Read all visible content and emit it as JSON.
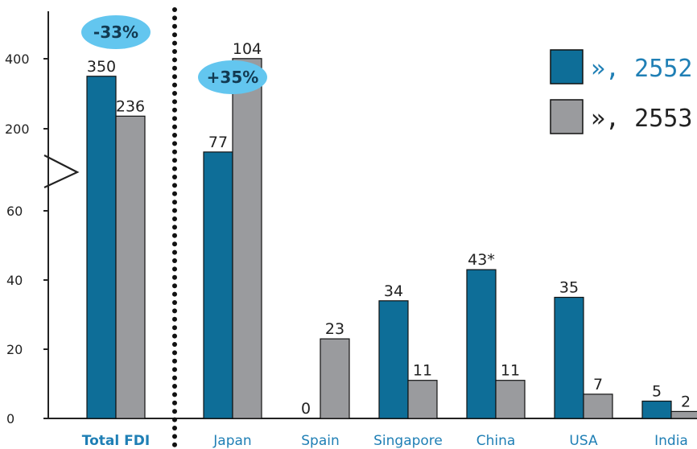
{
  "colors": {
    "series_2552": "#0e6e98",
    "series_2553": "#9a9b9e",
    "axis": "#222222",
    "category": "#1f7fb5",
    "badge": "#63c6ef",
    "legend_2552": "#1f7fb5",
    "legend_2553": "#222222"
  },
  "chart_data": {
    "type": "bar",
    "categories": [
      "Total FDI",
      "Japan",
      "Spain",
      "Singapore",
      "China",
      "USA",
      "India"
    ],
    "series": [
      {
        "name": "», 2552",
        "values": [
          350,
          77,
          0,
          34,
          43,
          35,
          5
        ],
        "labels": [
          "350",
          "77",
          "0",
          "34",
          "43*",
          "35",
          "5"
        ]
      },
      {
        "name": "», 2553",
        "values": [
          236,
          104,
          23,
          11,
          11,
          7,
          2
        ],
        "labels": [
          "236",
          "104",
          "23",
          "11",
          "11",
          "7",
          "2"
        ]
      }
    ],
    "y_ticks_lower": [
      "0",
      "20",
      "40",
      "60"
    ],
    "y_ticks_upper": [
      "200",
      "400"
    ],
    "scale": "broken axis: linear 0–70 below the break, 200–400 above",
    "legend_position": "top-right",
    "badges": [
      {
        "text": "-33%",
        "category": "Total FDI"
      },
      {
        "text": "+35%",
        "category": "Japan"
      }
    ],
    "title": "",
    "xlabel": "",
    "ylabel": ""
  }
}
